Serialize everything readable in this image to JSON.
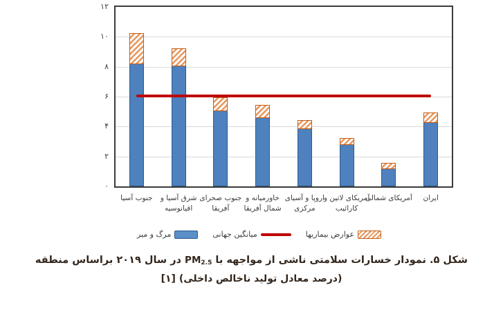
{
  "chart_data": {
    "type": "bar",
    "stacked": true,
    "categories": [
      [
        "جنوب آسیا"
      ],
      [
        "شرق آسیا و",
        "اقیانوسیه"
      ],
      [
        "جنوب صحرای",
        "آفریقا"
      ],
      [
        "خاورمیانه و",
        "شمال آفریقا"
      ],
      [
        "اروپا و آسیای",
        "مرکزی"
      ],
      [
        "آمریکای لاتین و",
        "کارائیب"
      ],
      [
        "آمریکای شمالی"
      ],
      [
        "ایران"
      ]
    ],
    "series": [
      {
        "name": "مرگ و میر",
        "values": [
          8.2,
          8.1,
          5.1,
          4.6,
          3.9,
          2.8,
          1.2,
          4.3
        ],
        "color": "#4e81bd",
        "style": "solid"
      },
      {
        "name": "عوارض بیماریها",
        "values": [
          2.1,
          1.2,
          0.9,
          0.9,
          0.6,
          0.5,
          0.4,
          0.7
        ],
        "color": "#e8965a",
        "style": "hatched"
      }
    ],
    "reference_line": {
      "name": "میانگین جهانی",
      "value": 6.05,
      "color": "#c00000"
    },
    "ylim": [
      0,
      12
    ],
    "yticks": [
      0,
      2,
      4,
      6,
      8,
      10,
      12
    ],
    "ytick_labels": [
      "۰",
      "۲",
      "۴",
      "۶",
      "۸",
      "۱۰",
      "۱۲"
    ],
    "grid": true,
    "legend_position": "bottom"
  },
  "caption": {
    "line1_before": "شکل ۵. نمودار خسارات سلامتی ناشی از مواجهه با ",
    "pm": "PM",
    "pm_sub": "2.5",
    "line1_after": " در سال ۲۰۱۹ براساس منطقه",
    "line2": "(درصد معادل تولید ناخالص داخلی) [۱]"
  },
  "colors": {
    "deaths_fill": "#4e81bd",
    "deaths_border": "#2d5a8c",
    "morbidity_stripe": "#e8965a",
    "morbidity_border": "#c55a11",
    "reference_red": "#c00000",
    "gridline": "#d9d9d9",
    "plot_border": "#3a3a3a"
  }
}
